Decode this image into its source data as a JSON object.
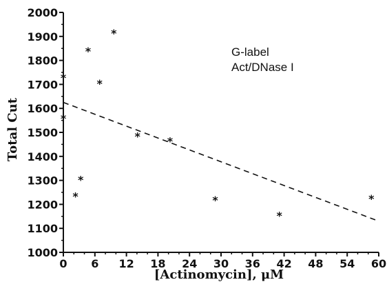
{
  "chart_data": {
    "type": "scatter",
    "xlabel": "[Actinomycin], μM",
    "ylabel": "Total Cut",
    "xlim": [
      0,
      60
    ],
    "ylim": [
      1000,
      2000
    ],
    "x_ticks": [
      0,
      6,
      12,
      18,
      24,
      30,
      36,
      42,
      48,
      54,
      60
    ],
    "y_ticks": [
      1000,
      1100,
      1200,
      1300,
      1400,
      1500,
      1600,
      1700,
      1800,
      1900,
      2000
    ],
    "legend": [
      "G-label",
      "Act/DNase I"
    ],
    "legend_position": "top-right",
    "grid": false,
    "series": [
      {
        "marker": "*",
        "x": [
          0,
          0,
          2.3,
          3.3,
          4.7,
          6.9,
          9.6,
          14.1,
          20.3,
          28.9,
          41.1,
          58.6
        ],
        "y": [
          1740,
          1570,
          1245,
          1315,
          1850,
          1715,
          1925,
          1495,
          1475,
          1230,
          1165,
          1235
        ]
      }
    ],
    "trendline": {
      "style": "dashed",
      "x": [
        0,
        60
      ],
      "y": [
        1625,
        1130
      ]
    }
  }
}
